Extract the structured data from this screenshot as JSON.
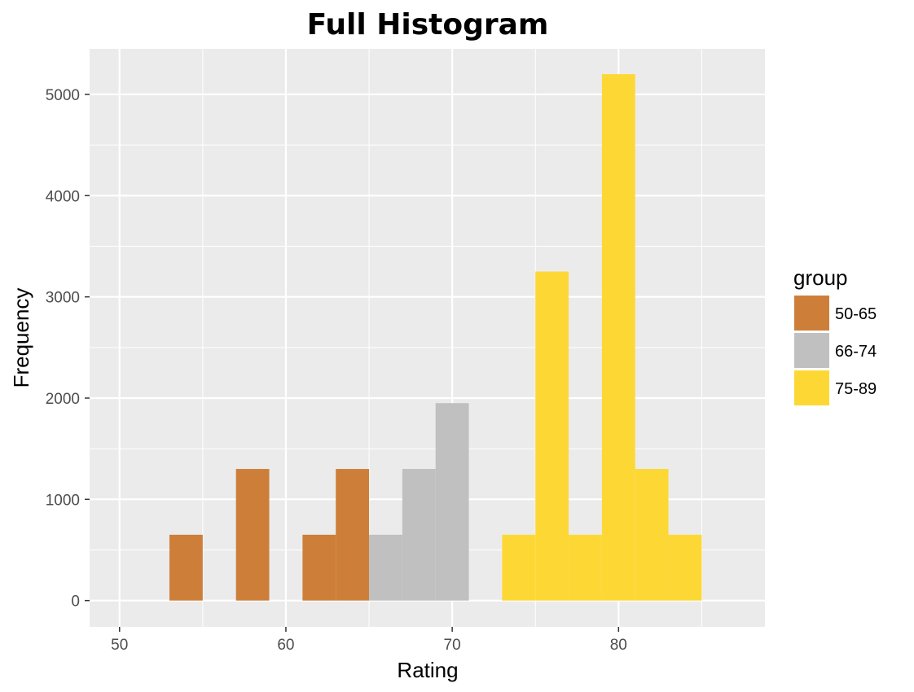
{
  "chart_data": {
    "type": "bar",
    "title": "Full Histogram",
    "xlabel": "Rating",
    "ylabel": "Frequency",
    "xlim": [
      48.2,
      88.8
    ],
    "ylim": [
      -260,
      5450
    ],
    "xticks": [
      50,
      60,
      70,
      80
    ],
    "yticks": [
      0,
      1000,
      2000,
      3000,
      4000,
      5000
    ],
    "grid": true,
    "bin_width": 2,
    "legend": {
      "title": "group",
      "position": "right",
      "entries": [
        {
          "label": "50-65",
          "color": "#CD7F3A"
        },
        {
          "label": "66-74",
          "color": "#C0C0C0"
        },
        {
          "label": "75-89",
          "color": "#FDD835"
        }
      ]
    },
    "bins": [
      {
        "x0": 53,
        "x1": 55,
        "value": 650,
        "group": "50-65"
      },
      {
        "x0": 57,
        "x1": 59,
        "value": 1300,
        "group": "50-65"
      },
      {
        "x0": 61,
        "x1": 63,
        "value": 650,
        "group": "50-65"
      },
      {
        "x0": 63,
        "x1": 65,
        "value": 1300,
        "group": "50-65"
      },
      {
        "x0": 65,
        "x1": 67,
        "value": 650,
        "group": "66-74"
      },
      {
        "x0": 67,
        "x1": 69,
        "value": 1300,
        "group": "66-74"
      },
      {
        "x0": 69,
        "x1": 71,
        "value": 1950,
        "group": "66-74"
      },
      {
        "x0": 73,
        "x1": 75,
        "value": 650,
        "group": "75-89"
      },
      {
        "x0": 75,
        "x1": 77,
        "value": 3250,
        "group": "75-89"
      },
      {
        "x0": 77,
        "x1": 79,
        "value": 650,
        "group": "75-89"
      },
      {
        "x0": 79,
        "x1": 81,
        "value": 5200,
        "group": "75-89"
      },
      {
        "x0": 81,
        "x1": 83,
        "value": 1300,
        "group": "75-89"
      },
      {
        "x0": 83,
        "x1": 85,
        "value": 650,
        "group": "75-89"
      }
    ]
  }
}
